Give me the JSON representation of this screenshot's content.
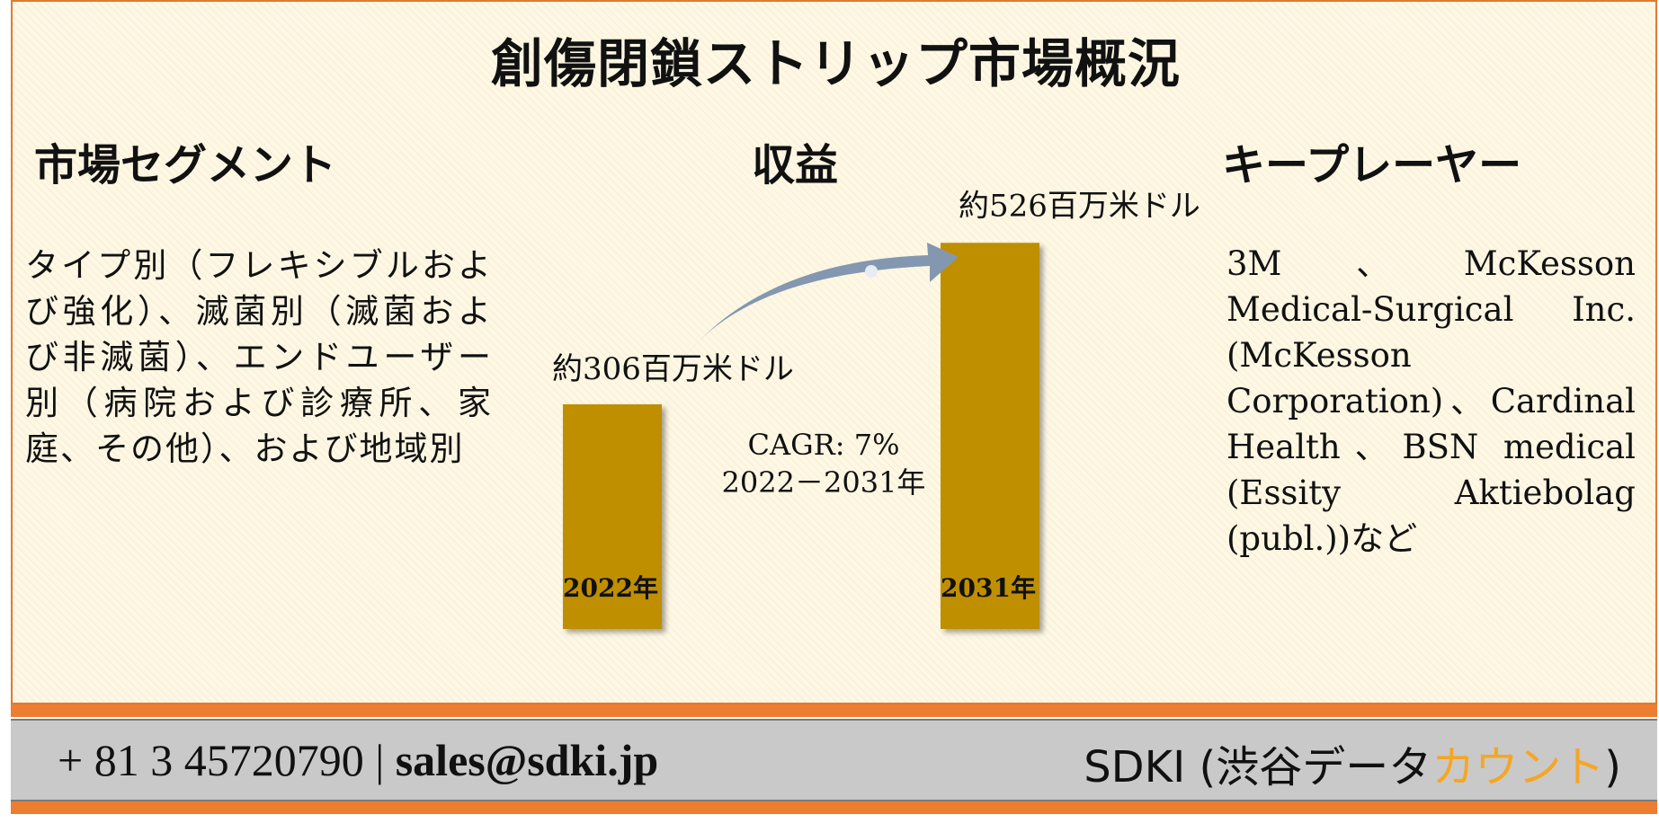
{
  "title": "創傷閉鎖ストリップ市場概況",
  "sections": {
    "segments_heading": "市場セグメント",
    "revenue_heading": "収益",
    "players_heading": "キープレーヤー"
  },
  "segments_text": "タイプ別（フレキシブルおよび強化）、滅菌別（滅菌および非滅菌）、エンドユーザー別（病院および診療所、家庭、その他）、および地域別",
  "players_text": "3M、McKesson Medical-Surgical Inc. (McKesson Corporation)、Cardinal Health、BSN medical (Essity Aktiebolag (publ.))など",
  "chart_data": {
    "type": "bar",
    "categories": [
      "2022年",
      "2031年"
    ],
    "values": [
      306,
      526
    ],
    "value_labels": [
      "約306百万米ドル",
      "約526百万米ドル"
    ],
    "annotation": [
      "CAGR: 7%",
      "2022－2031年"
    ],
    "bar_color": "#bf8f00",
    "arrow_color": "#8497b0"
  },
  "footer": {
    "phone": "+ 81 3 45720790",
    "separator": "|",
    "email": "sales@sdki.jp",
    "brand_prefix": "SDKI (渋谷データ",
    "brand_accent": "カウント",
    "brand_suffix": ")",
    "accent_color": "#f5a623",
    "bar_color": "#ec7d31"
  }
}
